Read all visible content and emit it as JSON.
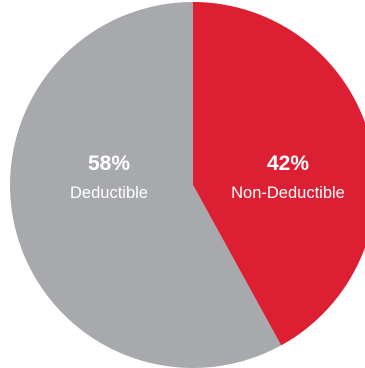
{
  "chart_data": {
    "type": "pie",
    "slices": [
      {
        "label": "Non-Deductible",
        "value": 42,
        "value_label": "42%",
        "color": "#dc1f32"
      },
      {
        "label": "Deductible",
        "value": 58,
        "value_label": "58%",
        "color": "#a7a9ac"
      }
    ],
    "start_angle": "12 o'clock",
    "direction": "clockwise",
    "legend": "none"
  }
}
